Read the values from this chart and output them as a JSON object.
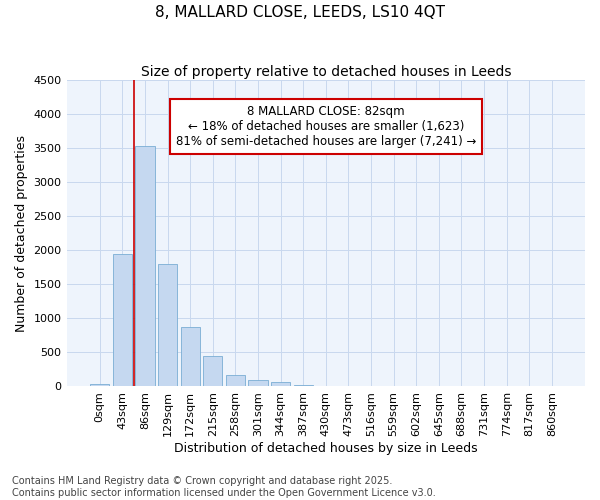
{
  "title1": "8, MALLARD CLOSE, LEEDS, LS10 4QT",
  "title2": "Size of property relative to detached houses in Leeds",
  "xlabel": "Distribution of detached houses by size in Leeds",
  "ylabel": "Number of detached properties",
  "categories": [
    "0sqm",
    "43sqm",
    "86sqm",
    "129sqm",
    "172sqm",
    "215sqm",
    "258sqm",
    "301sqm",
    "344sqm",
    "387sqm",
    "430sqm",
    "473sqm",
    "516sqm",
    "559sqm",
    "602sqm",
    "645sqm",
    "688sqm",
    "731sqm",
    "774sqm",
    "817sqm",
    "860sqm"
  ],
  "bar_values": [
    30,
    1950,
    3530,
    1800,
    870,
    450,
    175,
    100,
    60,
    25,
    10,
    0,
    0,
    0,
    0,
    0,
    0,
    0,
    0,
    0,
    0
  ],
  "bar_color": "#c5d8f0",
  "bar_edge_color": "#7aadd4",
  "grid_color": "#c8d8ee",
  "background_color": "#ffffff",
  "plot_background_color": "#eef4fc",
  "vline_color": "#cc0000",
  "vline_x_index": 2,
  "annotation_text": "8 MALLARD CLOSE: 82sqm\n← 18% of detached houses are smaller (1,623)\n81% of semi-detached houses are larger (7,241) →",
  "annotation_box_edgecolor": "#cc0000",
  "annotation_box_facecolor": "#ffffff",
  "ylim": [
    0,
    4500
  ],
  "yticks": [
    0,
    500,
    1000,
    1500,
    2000,
    2500,
    3000,
    3500,
    4000,
    4500
  ],
  "footnote": "Contains HM Land Registry data © Crown copyright and database right 2025.\nContains public sector information licensed under the Open Government Licence v3.0.",
  "title1_fontsize": 11,
  "title2_fontsize": 10,
  "axis_label_fontsize": 9,
  "tick_fontsize": 8,
  "annotation_fontsize": 8.5,
  "footnote_fontsize": 7
}
